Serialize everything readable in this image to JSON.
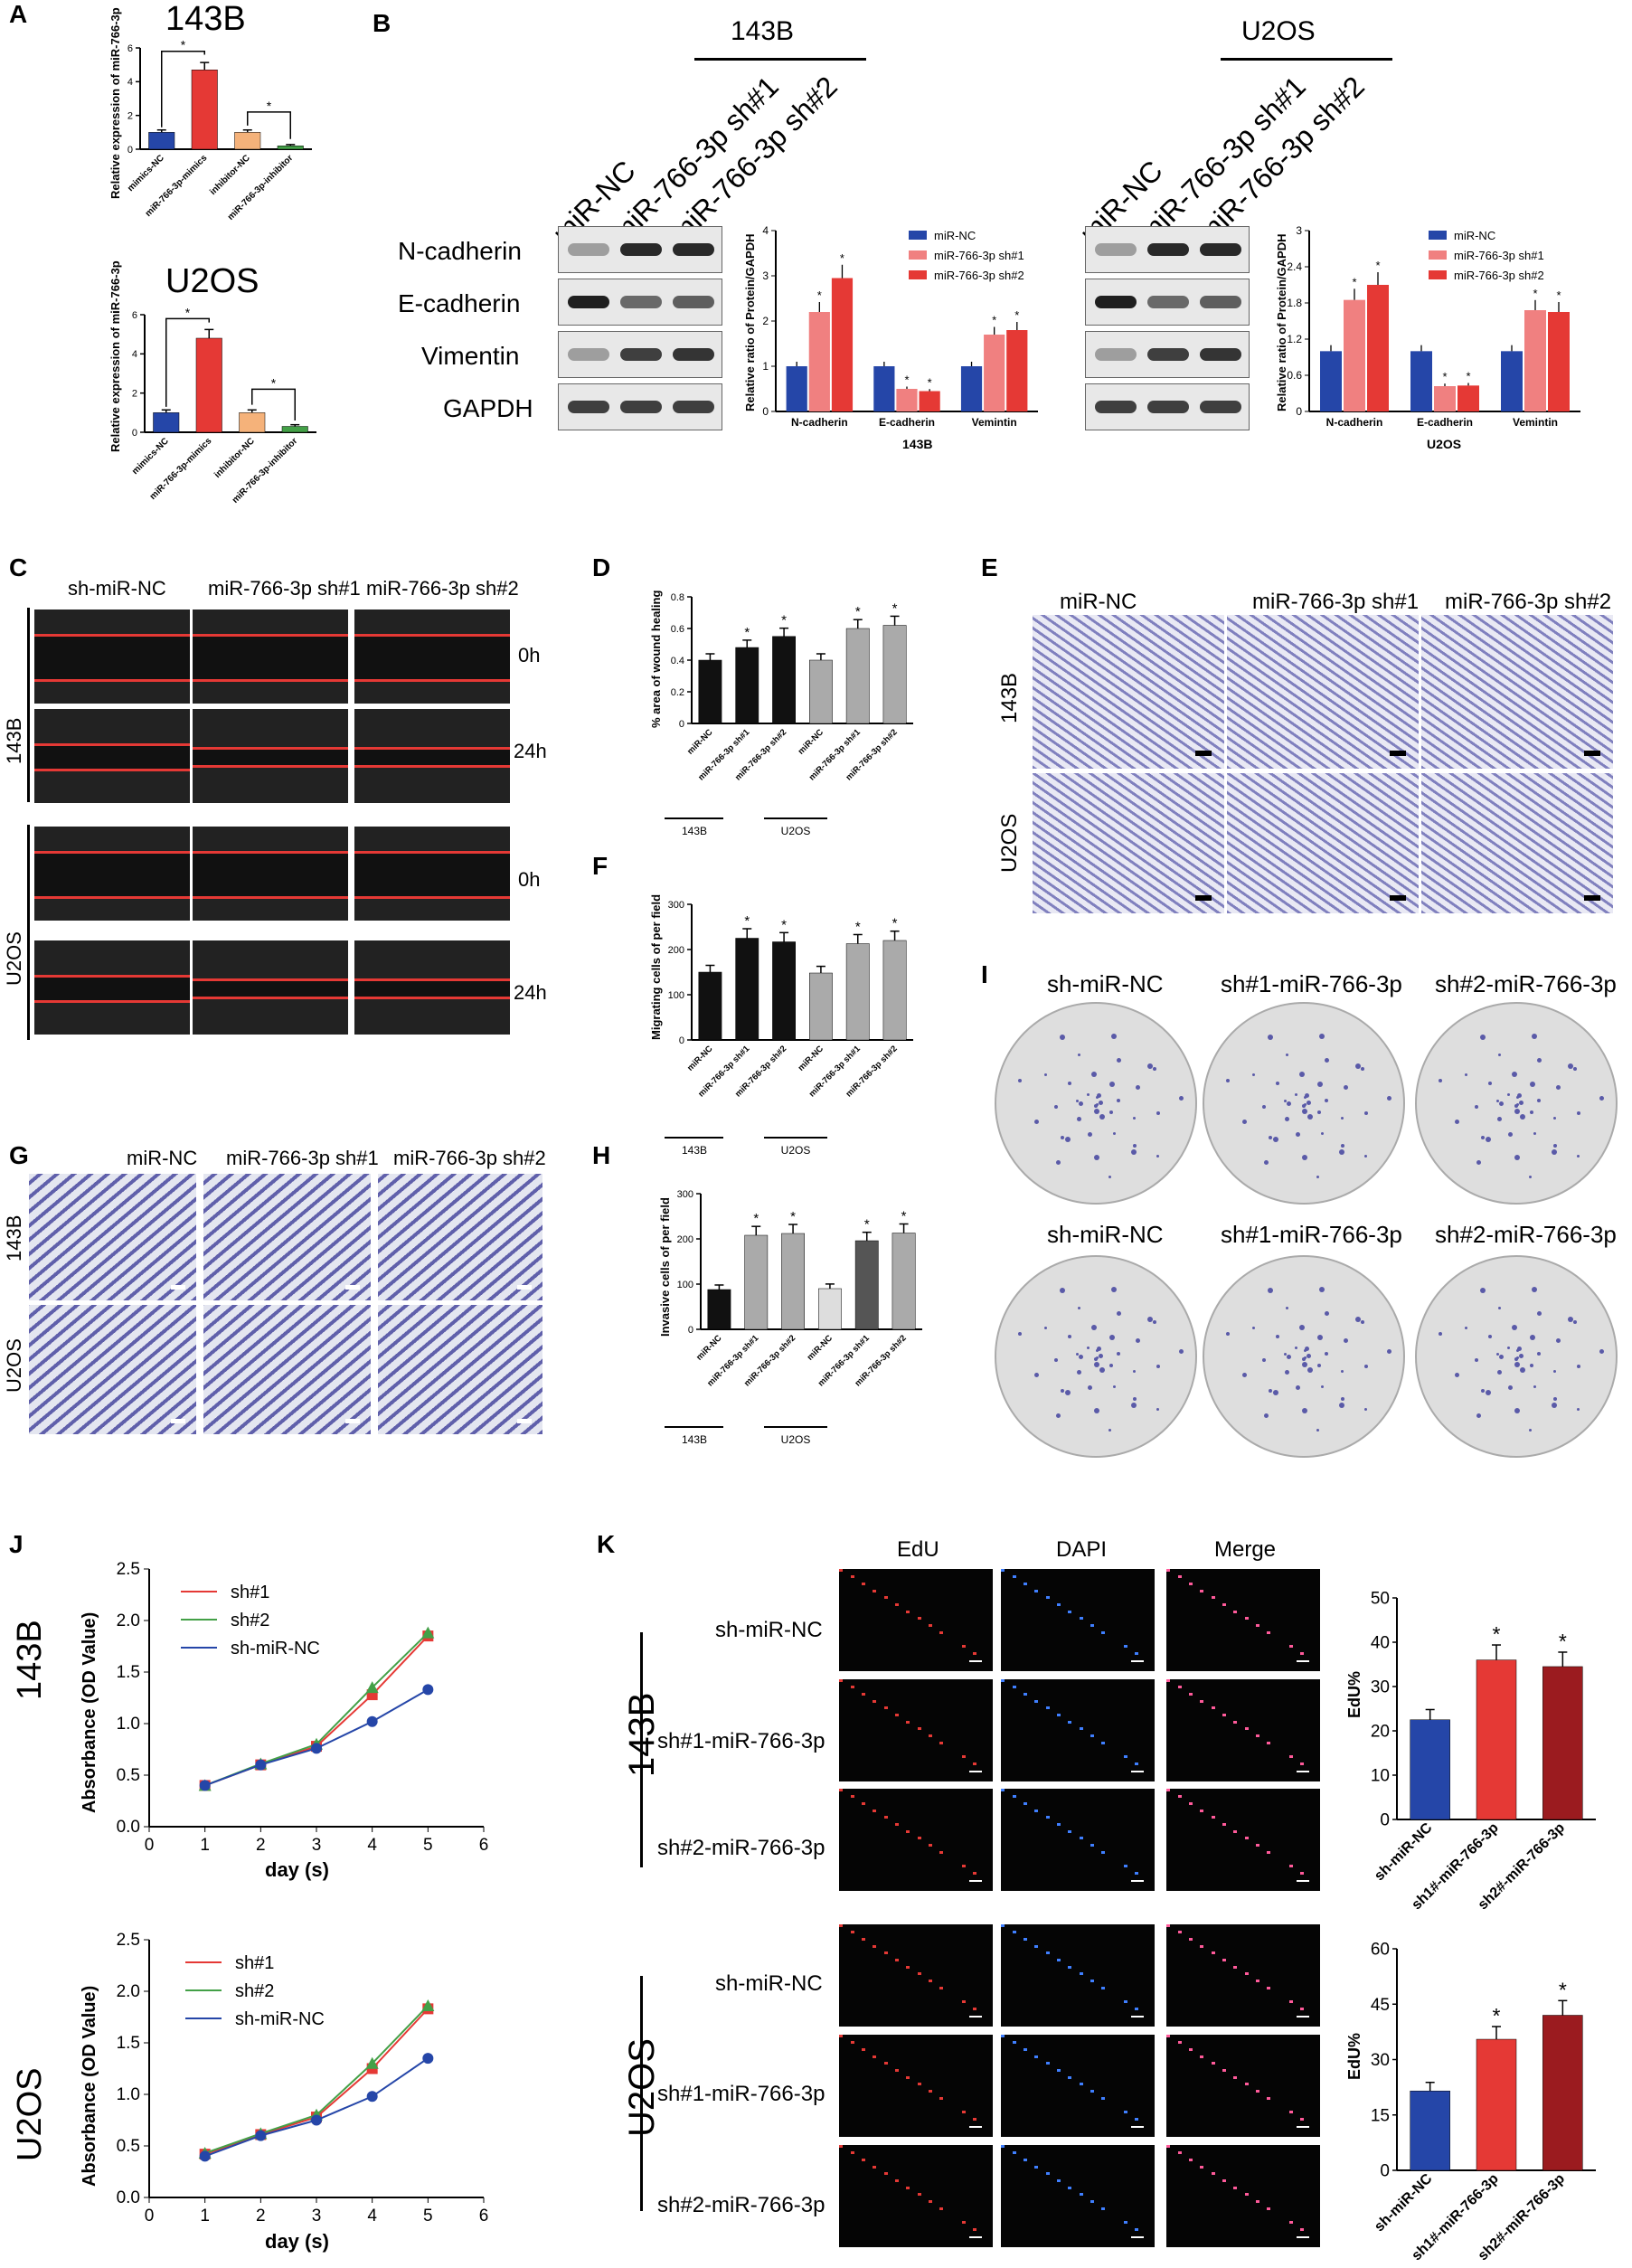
{
  "panels": {
    "A": {
      "label": "A",
      "cell1": "143B",
      "cell2": "U2OS",
      "ylabel": "Relative expression of miR-766-3p",
      "groups": [
        "mimics-NC",
        "miR-766-3p-mimics",
        "inhibitor-NC",
        "miR-766-3p-inhibitor"
      ]
    },
    "B": {
      "label": "B",
      "cell1": "143B",
      "cell2": "U2OS",
      "lanes": [
        "miR-NC",
        "miR-766-3p sh#1",
        "miR-766-3p sh#2"
      ],
      "proteins": [
        "N-cadherin",
        "E-cadherin",
        "Vimentin",
        "GAPDH"
      ],
      "ylabel": "Relative ratio of Protein/GAPDH",
      "legend": [
        "miR-NC",
        "miR-766-3p sh#1",
        "miR-766-3p sh#2"
      ],
      "xcats": [
        "N-cadherin",
        "E-cadherin",
        "Vementin",
        "Vemintin"
      ]
    },
    "C": {
      "label": "C",
      "cols": [
        "sh-miR-NC",
        "miR-766-3p sh#1",
        "miR-766-3p sh#2"
      ],
      "rows": [
        "143B",
        "U2OS"
      ],
      "times": [
        "0h",
        "24h"
      ]
    },
    "D": {
      "label": "D",
      "ylabel": "% area of wound healing"
    },
    "E": {
      "label": "E",
      "cols": [
        "miR-NC",
        "miR-766-3p sh#1",
        "miR-766-3p sh#2"
      ],
      "rows": [
        "143B",
        "U2OS"
      ]
    },
    "F": {
      "label": "F",
      "ylabel": "Migrating cells of per field"
    },
    "G": {
      "label": "G",
      "cols": [
        "miR-NC",
        "miR-766-3p sh#1",
        "miR-766-3p sh#2"
      ],
      "rows": [
        "143B",
        "U2OS"
      ]
    },
    "H": {
      "label": "H",
      "ylabel": "Invasive cells of per field"
    },
    "I": {
      "label": "I",
      "cols": [
        "sh-miR-NC",
        "sh#1-miR-766-3p",
        "sh#2-miR-766-3p"
      ]
    },
    "J": {
      "label": "J",
      "cell1": "143B",
      "cell2": "U2OS",
      "ylabel": "Absorbance (OD Value)",
      "xlabel": "day (s)",
      "legend": [
        "sh#1",
        "sh#2",
        "sh-miR-NC"
      ]
    },
    "K": {
      "label": "K",
      "cols": [
        "EdU",
        "DAPI",
        "Merge"
      ],
      "rows": [
        "sh-miR-NC",
        "sh#1-miR-766-3p",
        "sh#2-miR-766-3p"
      ],
      "cell1": "143B",
      "cell2": "U2OS",
      "ylabel": "EdU%",
      "xcats": [
        "sh-miR-NC",
        "sh1#-miR-766-3p",
        "sh2#-miR-766-3p"
      ]
    }
  },
  "star": "*",
  "shared": {
    "cells_short": [
      "143B",
      "U2OS"
    ],
    "xcats_sh": [
      "miR-NC",
      "miR-766-3p sh#1",
      "miR-766-3p sh#2",
      "miR-NC",
      "miR-766-3p sh#1",
      "miR-766-3p sh#2"
    ]
  },
  "colors": {
    "blue": "#2546a8",
    "red": "#e53935",
    "pink": "#f08080",
    "orange": "#f5b27a",
    "green": "#43a047",
    "darkred": "#9b1b1f",
    "black": "#111111",
    "grey": "#aaaaaa",
    "darkgrey": "#555555"
  },
  "chart_data": [
    {
      "id": "A-143B",
      "type": "bar",
      "categories": [
        "mimics-NC",
        "miR-766-3p-mimics",
        "inhibitor-NC",
        "miR-766-3p-inhibitor"
      ],
      "values": [
        1.0,
        4.7,
        1.0,
        0.2
      ],
      "ylim": [
        0,
        6
      ]
    },
    {
      "id": "A-U2OS",
      "type": "bar",
      "categories": [
        "mimics-NC",
        "miR-766-3p-mimics",
        "inhibitor-NC",
        "miR-766-3p-inhibitor"
      ],
      "values": [
        1.0,
        4.8,
        1.0,
        0.3
      ],
      "ylim": [
        0,
        6
      ]
    },
    {
      "id": "B-143B",
      "type": "bar",
      "categories": [
        "N-cadherin",
        "E-cadherin",
        "Vemintin"
      ],
      "series": [
        {
          "name": "miR-NC",
          "values": [
            1.0,
            1.0,
            1.0
          ]
        },
        {
          "name": "miR-766-3p sh#1",
          "values": [
            2.2,
            0.5,
            1.7
          ]
        },
        {
          "name": "miR-766-3p sh#2",
          "values": [
            2.95,
            0.45,
            1.8
          ]
        }
      ],
      "ylim": [
        0,
        4
      ]
    },
    {
      "id": "B-U2OS",
      "type": "bar",
      "categories": [
        "N-cadherin",
        "E-cadherin",
        "Vemintin"
      ],
      "series": [
        {
          "name": "miR-NC",
          "values": [
            1.0,
            1.0,
            1.0
          ]
        },
        {
          "name": "miR-766-3p sh#1",
          "values": [
            1.85,
            0.42,
            1.68
          ]
        },
        {
          "name": "miR-766-3p sh#2",
          "values": [
            2.1,
            0.43,
            1.65
          ]
        }
      ],
      "ylim": [
        0,
        3
      ]
    },
    {
      "id": "D",
      "type": "bar",
      "values": [
        0.4,
        0.48,
        0.55,
        0.4,
        0.6,
        0.62
      ],
      "ylim": [
        0,
        0.8
      ]
    },
    {
      "id": "F",
      "type": "bar",
      "values": [
        150,
        225,
        217,
        148,
        213,
        220
      ],
      "ylim": [
        0,
        300
      ]
    },
    {
      "id": "H",
      "type": "bar",
      "values": [
        88,
        208,
        212,
        90,
        196,
        213
      ],
      "ylim": [
        0,
        300
      ]
    },
    {
      "id": "J-143B",
      "type": "line",
      "x": [
        1,
        2,
        3,
        4,
        5
      ],
      "series": [
        {
          "name": "sh#1",
          "values": [
            0.4,
            0.6,
            0.78,
            1.28,
            1.85
          ]
        },
        {
          "name": "sh#2",
          "values": [
            0.4,
            0.61,
            0.8,
            1.35,
            1.88
          ]
        },
        {
          "name": "sh-miR-NC",
          "values": [
            0.4,
            0.6,
            0.76,
            1.02,
            1.33
          ]
        }
      ],
      "ylim": [
        0,
        2.5
      ],
      "xlim": [
        0,
        6
      ]
    },
    {
      "id": "J-U2OS",
      "type": "line",
      "x": [
        1,
        2,
        3,
        4,
        5
      ],
      "series": [
        {
          "name": "sh#1",
          "values": [
            0.42,
            0.61,
            0.78,
            1.25,
            1.83
          ]
        },
        {
          "name": "sh#2",
          "values": [
            0.43,
            0.62,
            0.8,
            1.3,
            1.86
          ]
        },
        {
          "name": "sh-miR-NC",
          "values": [
            0.4,
            0.6,
            0.75,
            0.98,
            1.35
          ]
        }
      ],
      "ylim": [
        0,
        2.5
      ],
      "xlim": [
        0,
        6
      ]
    },
    {
      "id": "K-143B",
      "type": "bar",
      "categories": [
        "sh-miR-NC",
        "sh1#-miR-766-3p",
        "sh2#-miR-766-3p"
      ],
      "values": [
        22.5,
        36,
        34.5
      ],
      "ylim": [
        0,
        50
      ]
    },
    {
      "id": "K-U2OS",
      "type": "bar",
      "categories": [
        "sh-miR-NC",
        "sh1#-miR-766-3p",
        "sh2#-miR-766-3p"
      ],
      "values": [
        21.5,
        35.5,
        42
      ],
      "ylim": [
        0,
        60
      ]
    }
  ]
}
